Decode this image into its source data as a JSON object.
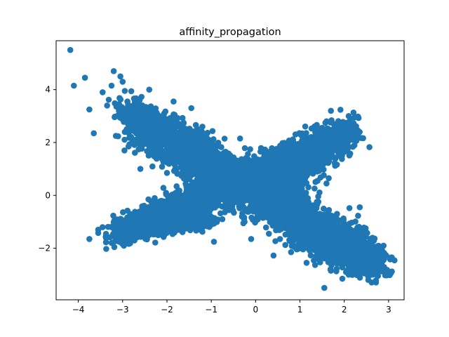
{
  "chart_data": {
    "type": "scatter",
    "title": "affinity_propagation",
    "xlabel": "",
    "ylabel": "",
    "xlim": [
      -4.5,
      3.35
    ],
    "ylim": [
      -3.95,
      5.85
    ],
    "xticks": [
      -4,
      -3,
      -2,
      -1,
      0,
      1,
      2,
      3
    ],
    "yticks": [
      -2,
      0,
      2,
      4
    ],
    "grid": false,
    "marker_color": "#1f77b4",
    "series": [
      {
        "points": [
          [
            -4.18,
            5.5
          ],
          [
            -4.1,
            4.15
          ],
          [
            -3.85,
            4.45
          ],
          [
            -3.75,
            3.25
          ],
          [
            -3.65,
            2.35
          ],
          [
            -3.45,
            3.9
          ],
          [
            -3.35,
            3.4
          ],
          [
            -3.25,
            4.15
          ],
          [
            -3.2,
            4.7
          ],
          [
            -3.05,
            4.5
          ],
          [
            -3.0,
            4.3
          ],
          [
            -2.95,
            3.95
          ],
          [
            -3.1,
            3.0
          ],
          [
            -2.95,
            2.4
          ],
          [
            -2.6,
            1.0
          ],
          [
            -2.4,
            4.0
          ],
          [
            -1.85,
            3.55
          ],
          [
            -1.45,
            3.3
          ],
          [
            -1.2,
            2.6
          ],
          [
            -0.35,
            2.15
          ],
          [
            -0.6,
            1.55
          ],
          [
            -0.1,
            -1.65
          ],
          [
            0.3,
            -1.45
          ],
          [
            0.55,
            -1.65
          ],
          [
            0.8,
            -2.15
          ],
          [
            1.0,
            -2.0
          ],
          [
            1.15,
            -2.55
          ],
          [
            1.55,
            -3.5
          ],
          [
            1.7,
            -2.85
          ],
          [
            2.1,
            -3.0
          ],
          [
            2.45,
            -2.95
          ],
          [
            2.7,
            -2.75
          ],
          [
            2.75,
            -2.25
          ],
          [
            2.9,
            -2.4
          ],
          [
            3.05,
            -2.35
          ],
          [
            3.05,
            -2.95
          ],
          [
            2.55,
            -1.85
          ],
          [
            2.45,
            -1.8
          ],
          [
            2.35,
            -0.45
          ],
          [
            1.65,
            0.65
          ],
          [
            1.6,
            0.45
          ],
          [
            1.7,
            3.2
          ],
          [
            1.9,
            2.6
          ],
          [
            2.1,
            3.0
          ],
          [
            1.95,
            1.5
          ],
          [
            2.2,
            2.35
          ],
          [
            -3.75,
            -1.65
          ],
          [
            -3.55,
            -1.3
          ],
          [
            -3.25,
            -1.8
          ],
          [
            -2.9,
            -1.75
          ],
          [
            -1.0,
            -0.35
          ],
          [
            -0.95,
            0.3
          ],
          [
            -1.5,
            0.35
          ],
          [
            -1.6,
            0.95
          ],
          [
            -2.0,
            0.85
          ],
          [
            -1.05,
            -0.7
          ],
          [
            -0.75,
            -0.9
          ],
          [
            -1.3,
            -0.35
          ]
        ]
      }
    ]
  }
}
